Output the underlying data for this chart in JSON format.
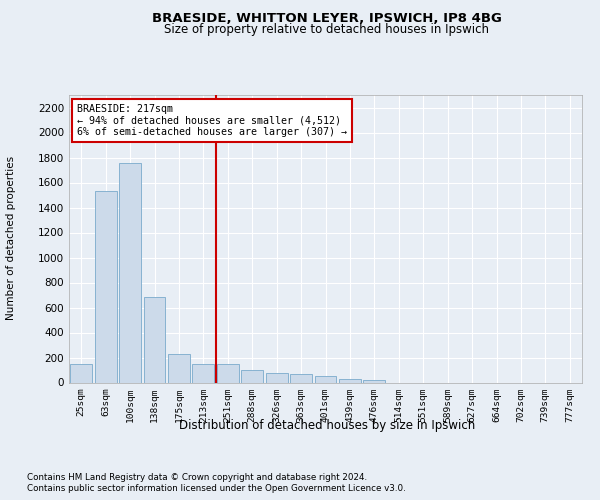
{
  "title1": "BRAESIDE, WHITTON LEYER, IPSWICH, IP8 4BG",
  "title2": "Size of property relative to detached houses in Ipswich",
  "xlabel": "Distribution of detached houses by size in Ipswich",
  "ylabel": "Number of detached properties",
  "footnote1": "Contains HM Land Registry data © Crown copyright and database right 2024.",
  "footnote2": "Contains public sector information licensed under the Open Government Licence v3.0.",
  "annotation_title": "BRAESIDE: 217sqm",
  "annotation_line1": "← 94% of detached houses are smaller (4,512)",
  "annotation_line2": "6% of semi-detached houses are larger (307) →",
  "bar_color": "#ccdaea",
  "bar_edgecolor": "#7aaacc",
  "vline_color": "#cc0000",
  "vline_position": 5.5,
  "annotation_box_edgecolor": "#cc0000",
  "categories": [
    "25sqm",
    "63sqm",
    "100sqm",
    "138sqm",
    "175sqm",
    "213sqm",
    "251sqm",
    "288sqm",
    "326sqm",
    "363sqm",
    "401sqm",
    "439sqm",
    "476sqm",
    "514sqm",
    "551sqm",
    "589sqm",
    "627sqm",
    "664sqm",
    "702sqm",
    "739sqm",
    "777sqm"
  ],
  "values": [
    148,
    1535,
    1755,
    685,
    232,
    148,
    148,
    100,
    78,
    65,
    50,
    32,
    22,
    0,
    0,
    0,
    0,
    0,
    0,
    0,
    0
  ],
  "ylim": [
    0,
    2300
  ],
  "yticks": [
    0,
    200,
    400,
    600,
    800,
    1000,
    1200,
    1400,
    1600,
    1800,
    2000,
    2200
  ],
  "bg_color": "#e8eef5",
  "plot_bg_color": "#e8eef5",
  "grid_color": "#ffffff"
}
